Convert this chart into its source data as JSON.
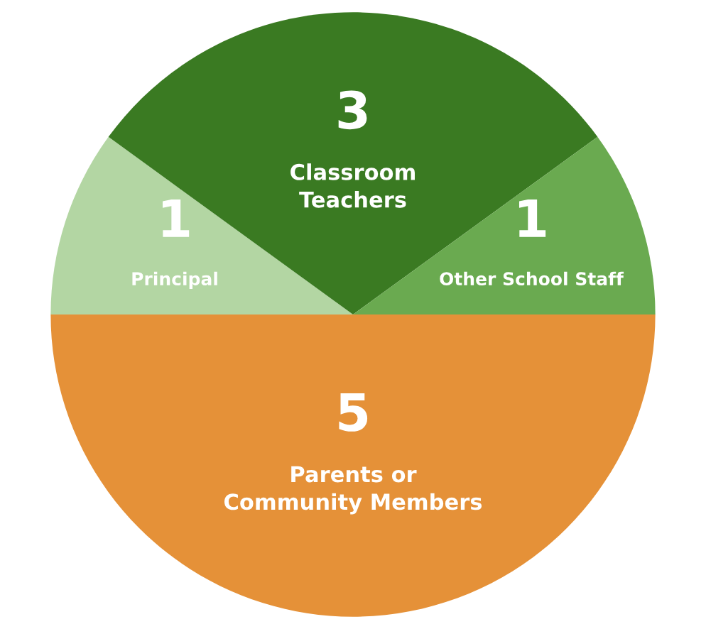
{
  "chart_data": {
    "type": "pie",
    "categories": [
      "Principal",
      "Classroom\nTeachers",
      "Other School Staff",
      "Parents or\nCommunity Members"
    ],
    "values": [
      1,
      3,
      1,
      5
    ],
    "colors": [
      "#b3d6a3",
      "#3a7a22",
      "#6aaa50",
      "#e59138"
    ],
    "data_labels": true
  }
}
